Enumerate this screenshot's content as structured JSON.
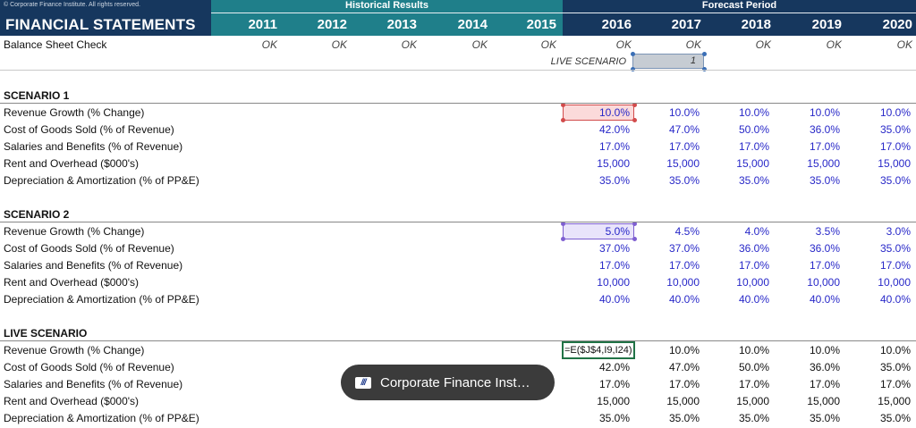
{
  "header": {
    "copyright": "© Corporate Finance Institute. All rights reserved.",
    "title": "FINANCIAL STATEMENTS",
    "historical_label": "Historical Results",
    "forecast_label": "Forecast Period",
    "years": [
      "2011",
      "2012",
      "2013",
      "2014",
      "2015",
      "2016",
      "2017",
      "2018",
      "2019",
      "2020"
    ]
  },
  "balance_check": {
    "label": "Balance Sheet Check",
    "values": [
      "OK",
      "OK",
      "OK",
      "OK",
      "OK",
      "OK",
      "OK",
      "OK",
      "OK",
      "OK"
    ]
  },
  "live_scenario_selector": {
    "label": "LIVE SCENARIO",
    "value": "1"
  },
  "row_labels": [
    "Revenue Growth (% Change)",
    "Cost of Goods Sold (% of Revenue)",
    "Salaries and Benefits (% of Revenue)",
    "Rent and Overhead ($000's)",
    "Depreciation & Amortization (% of PP&E)"
  ],
  "scenario1": {
    "title": "SCENARIO 1",
    "rows": [
      [
        "10.0%",
        "10.0%",
        "10.0%",
        "10.0%",
        "10.0%"
      ],
      [
        "42.0%",
        "47.0%",
        "50.0%",
        "36.0%",
        "35.0%"
      ],
      [
        "17.0%",
        "17.0%",
        "17.0%",
        "17.0%",
        "17.0%"
      ],
      [
        "15,000",
        "15,000",
        "15,000",
        "15,000",
        "15,000"
      ],
      [
        "35.0%",
        "35.0%",
        "35.0%",
        "35.0%",
        "35.0%"
      ]
    ]
  },
  "scenario2": {
    "title": "SCENARIO 2",
    "rows": [
      [
        "5.0%",
        "4.5%",
        "4.0%",
        "3.5%",
        "3.0%"
      ],
      [
        "37.0%",
        "37.0%",
        "36.0%",
        "36.0%",
        "35.0%"
      ],
      [
        "17.0%",
        "17.0%",
        "17.0%",
        "17.0%",
        "17.0%"
      ],
      [
        "10,000",
        "10,000",
        "10,000",
        "10,000",
        "10,000"
      ],
      [
        "40.0%",
        "40.0%",
        "40.0%",
        "40.0%",
        "40.0%"
      ]
    ]
  },
  "live": {
    "title": "LIVE SCENARIO",
    "formula": "=E($J$4,I9,I24)",
    "rows": [
      [
        "",
        "10.0%",
        "10.0%",
        "10.0%",
        "10.0%"
      ],
      [
        "42.0%",
        "47.0%",
        "50.0%",
        "36.0%",
        "35.0%"
      ],
      [
        "17.0%",
        "17.0%",
        "17.0%",
        "17.0%",
        "17.0%"
      ],
      [
        "15,000",
        "15,000",
        "15,000",
        "15,000",
        "15,000"
      ],
      [
        "35.0%",
        "35.0%",
        "35.0%",
        "35.0%",
        "35.0%"
      ]
    ]
  },
  "toast": {
    "text": "Corporate Finance Inst…"
  },
  "colors": {
    "header_navy": "#16375e",
    "header_teal": "#1f7f8a",
    "input_blue": "#2828c8",
    "excel_green": "#217346"
  }
}
